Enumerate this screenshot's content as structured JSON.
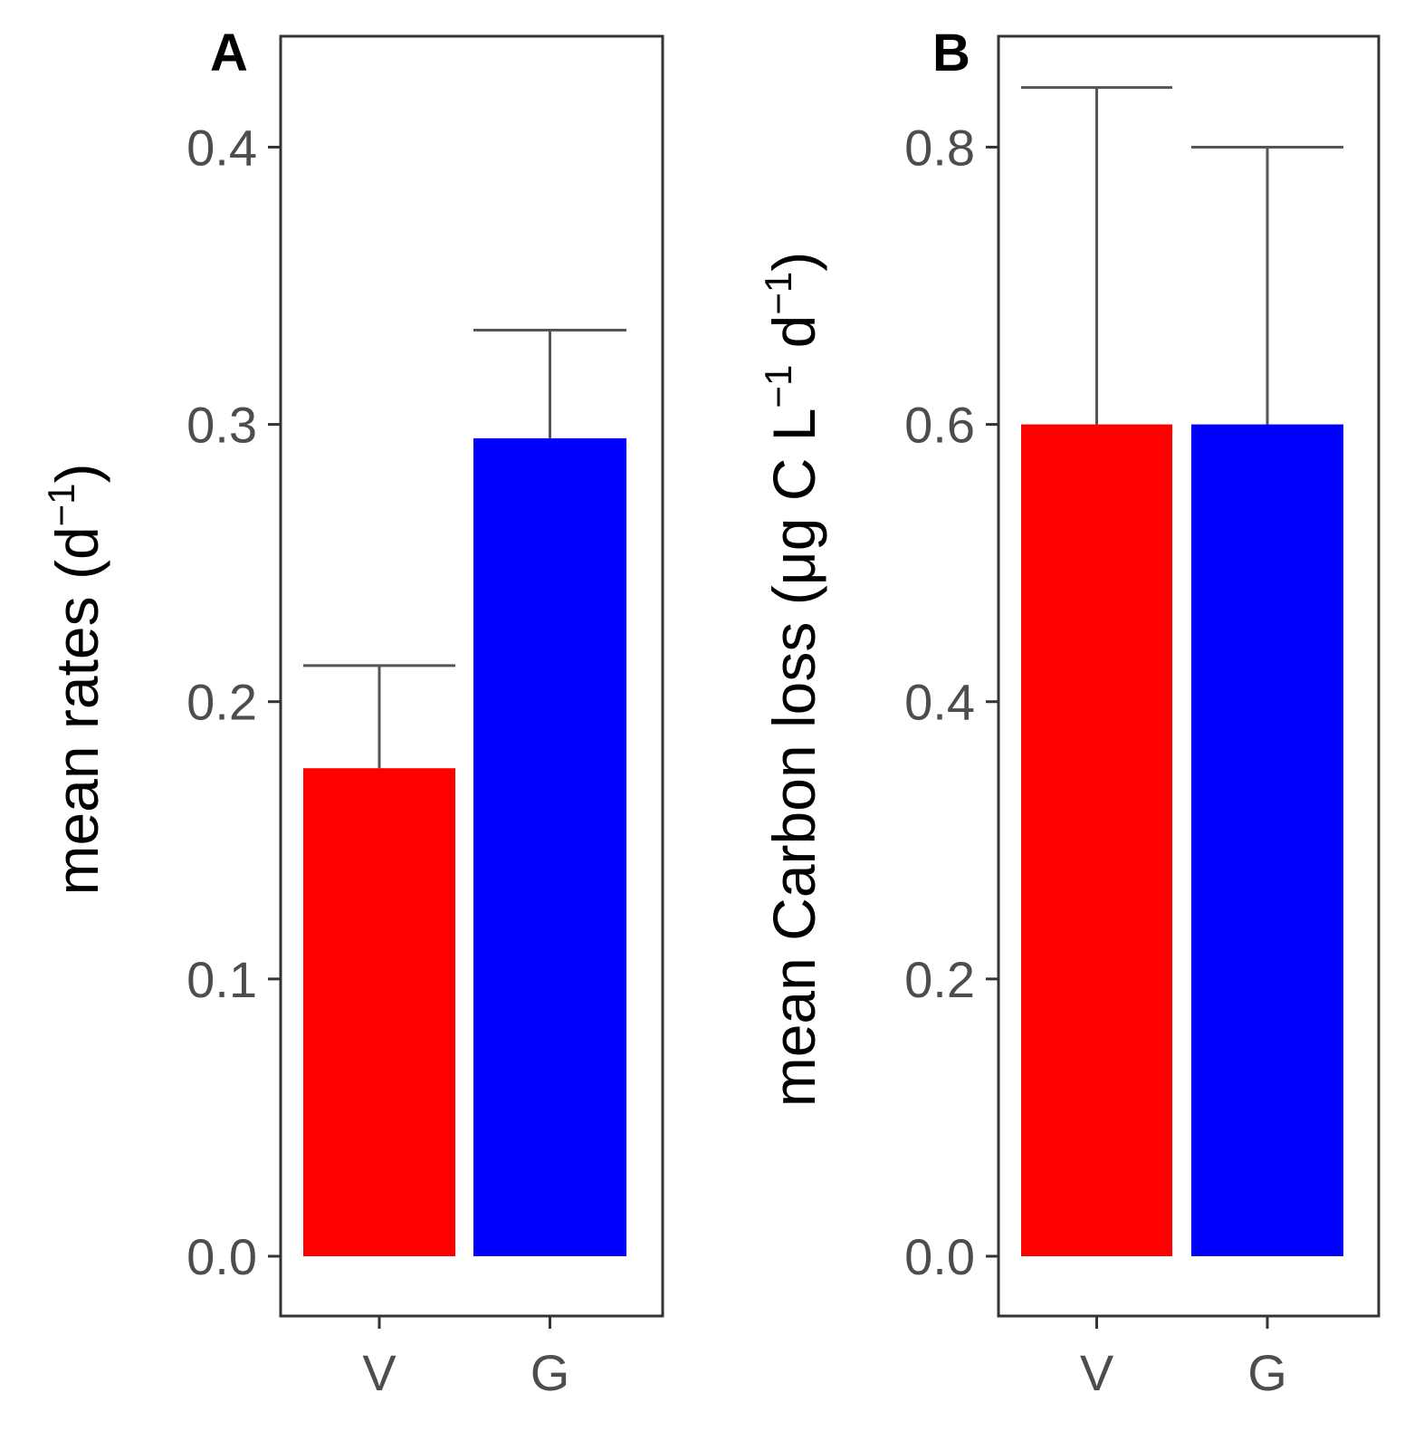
{
  "chart_data": [
    {
      "type": "bar",
      "panel_label": "A",
      "categories": [
        "V",
        "G"
      ],
      "values": [
        0.176,
        0.295
      ],
      "error_upper": [
        0.213,
        0.334
      ],
      "colors": [
        "#ff0000",
        "#0000ff"
      ],
      "ylabel": "mean rates (d",
      "ylabel_sup": "−1",
      "ylabel_close": ")",
      "yticks": [
        0.0,
        0.1,
        0.2,
        0.3,
        0.4
      ],
      "ytick_labels": [
        "0.0",
        "0.1",
        "0.2",
        "0.3",
        "0.4"
      ],
      "ylim": [
        -0.02,
        0.44
      ]
    },
    {
      "type": "bar",
      "panel_label": "B",
      "categories": [
        "V",
        "G"
      ],
      "values": [
        0.6,
        0.6
      ],
      "error_upper": [
        0.843,
        0.8
      ],
      "colors": [
        "#ff0000",
        "#0000ff"
      ],
      "ylabel": "mean Carbon loss (μg C L",
      "ylabel_sup": "−1",
      "ylabel_mid": " d",
      "ylabel_sup2": "−1",
      "ylabel_close": ")",
      "yticks": [
        0.0,
        0.2,
        0.4,
        0.6,
        0.8
      ],
      "ytick_labels": [
        "0.0",
        "0.2",
        "0.4",
        "0.6",
        "0.8"
      ],
      "ylim": [
        -0.04,
        0.88
      ]
    }
  ]
}
